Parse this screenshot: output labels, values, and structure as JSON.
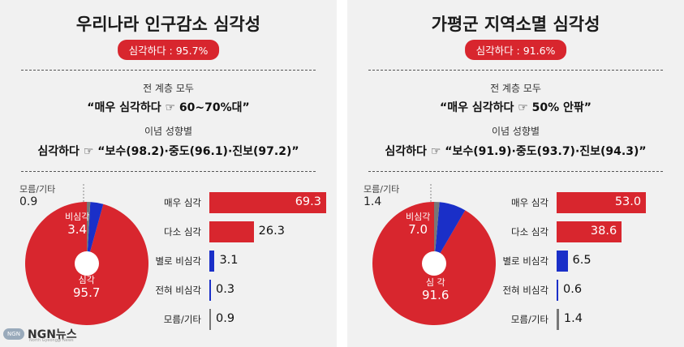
{
  "logo": {
    "name": "NGN뉴스",
    "tagline": "North Gyeonggi News",
    "mark_text": "NGN"
  },
  "panels": [
    {
      "title": "우리나라 인구감소 심각성",
      "badge": "심각하다 : 95.7%",
      "line1_label": "전 계층 모두",
      "line1_quote": "“매우 심각하다 ☞ 60~70%대”",
      "line2_label": "이념 성향별",
      "line2_quote": "심각하다 ☞ “보수(98.2)·중도(96.1)·진보(97.2)”",
      "pie_labels": {
        "serious": "심각",
        "serious_val": "95.7",
        "not": "비심각",
        "not_val": "3.4",
        "dk": "모름/기타",
        "dk_val": "0.9"
      }
    },
    {
      "title": "가평군 지역소멸 심각성",
      "badge": "심각하다 : 91.6%",
      "line1_label": "전 계층 모두",
      "line1_quote": "“매우 심각하다 ☞ 50% 안팎”",
      "line2_label": "이념 성향별",
      "line2_quote": "심각하다 ☞ “보수(91.9)·중도(93.7)·진보(94.3)”",
      "pie_labels": {
        "serious": "심 각",
        "serious_val": "91.6",
        "not": "비심각",
        "not_val": "7.0",
        "dk": "모름/기타",
        "dk_val": "1.4"
      }
    }
  ],
  "chart_data": [
    {
      "type": "pie",
      "slices": [
        {
          "label": "심각",
          "value": 95.7,
          "color": "#d8262e"
        },
        {
          "label": "비심각",
          "value": 3.4,
          "color": "#1a2fc8"
        },
        {
          "label": "모름/기타",
          "value": 0.9,
          "color": "#777777"
        }
      ]
    },
    {
      "type": "bar",
      "orientation": "horizontal",
      "categories": [
        "매우 심각",
        "다소 심각",
        "별로 비심각",
        "전혀 비심각",
        "모름/기타"
      ],
      "values": [
        69.3,
        26.3,
        3.1,
        0.3,
        0.9
      ],
      "colors": [
        "#d8262e",
        "#d8262e",
        "#1a2fc8",
        "#1a2fc8",
        "#777777"
      ]
    },
    {
      "type": "pie",
      "slices": [
        {
          "label": "심 각",
          "value": 91.6,
          "color": "#d8262e"
        },
        {
          "label": "비심각",
          "value": 7.0,
          "color": "#1a2fc8"
        },
        {
          "label": "모름/기타",
          "value": 1.4,
          "color": "#777777"
        }
      ]
    },
    {
      "type": "bar",
      "orientation": "horizontal",
      "categories": [
        "매우 심각",
        "다소 심각",
        "별로 비심각",
        "전혀 비심각",
        "모름/기타"
      ],
      "values": [
        53.0,
        38.6,
        6.5,
        0.6,
        1.4
      ],
      "colors": [
        "#d8262e",
        "#d8262e",
        "#1a2fc8",
        "#1a2fc8",
        "#777777"
      ]
    }
  ]
}
